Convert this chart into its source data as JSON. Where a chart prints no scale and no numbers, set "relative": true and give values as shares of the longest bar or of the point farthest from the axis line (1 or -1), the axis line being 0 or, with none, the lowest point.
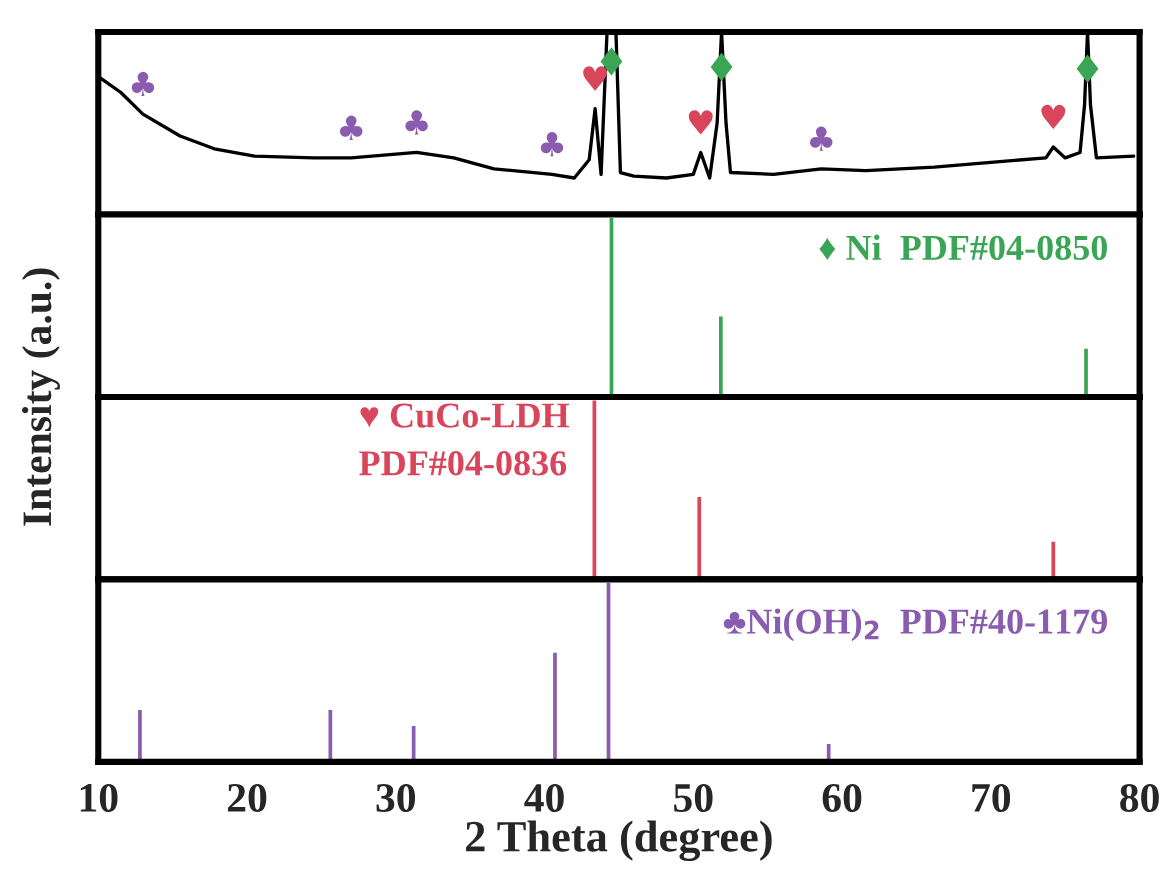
{
  "chart_data": [
    {
      "type": "line",
      "relative": true,
      "ylabel": "Intensity (a.u.)",
      "xlim": [
        10,
        80
      ],
      "tick_labels": false,
      "color": "#000000",
      "x": [
        10.1,
        11.5,
        13.0,
        15.5,
        17.8,
        20.5,
        24.5,
        27.0,
        31.4,
        33.9,
        36.6,
        40.5,
        42.0,
        43.0,
        43.4,
        43.8,
        44.2,
        44.5,
        44.8,
        45.1,
        46.0,
        48.2,
        50.0,
        50.5,
        51.1,
        51.6,
        51.9,
        52.2,
        52.5,
        55.4,
        58.6,
        61.6,
        66.2,
        70.6,
        73.7,
        74.2,
        75.0,
        76.0,
        76.3,
        76.5,
        76.7,
        77.1,
        79.6
      ],
      "values": [
        0.75,
        0.67,
        0.55,
        0.43,
        0.36,
        0.32,
        0.31,
        0.31,
        0.34,
        0.31,
        0.25,
        0.22,
        0.2,
        0.3,
        0.58,
        0.22,
        1,
        1,
        1,
        0.23,
        0.21,
        0.2,
        0.22,
        0.34,
        0.2,
        0.5,
        1,
        0.5,
        0.23,
        0.22,
        0.25,
        0.24,
        0.26,
        0.29,
        0.31,
        0.37,
        0.31,
        0.34,
        0.6,
        1,
        0.6,
        0.31,
        0.32
      ],
      "annotations": [
        {
          "text": "♣",
          "x": 13.0,
          "y": 0.55
        },
        {
          "text": "♣",
          "x": 27.0,
          "y": 0.31
        },
        {
          "text": "♣",
          "x": 31.4,
          "y": 0.34
        },
        {
          "text": "♣",
          "x": 40.5,
          "y": 0.22
        },
        {
          "text": "♣",
          "x": 58.6,
          "y": 0.25
        },
        {
          "text": "♥",
          "x": 43.4,
          "y": 0.58
        },
        {
          "text": "♥",
          "x": 50.5,
          "y": 0.34
        },
        {
          "text": "♥",
          "x": 74.2,
          "y": 0.37
        },
        {
          "text": "♦",
          "x": 44.5,
          "y": 0.82
        },
        {
          "text": "♦",
          "x": 51.9,
          "y": 0.79
        },
        {
          "text": "♦",
          "x": 76.5,
          "y": 0.78
        }
      ]
    },
    {
      "type": "bar",
      "relative": true,
      "xlim": [
        10,
        80
      ],
      "tick_labels": false,
      "color": "#3aa655",
      "x": [
        44.5,
        51.85,
        76.4
      ],
      "values": [
        1,
        0.45,
        0.27
      ],
      "annotations": [
        "♦ Ni  PDF#04-0850"
      ]
    },
    {
      "type": "bar",
      "relative": true,
      "xlim": [
        10,
        80
      ],
      "tick_labels": false,
      "color": "#d9455a",
      "x": [
        43.35,
        50.4,
        74.2
      ],
      "values": [
        1,
        0.46,
        0.21
      ],
      "annotations": [
        "♥ CuCo-LDH\nPDF#04-0836"
      ]
    },
    {
      "type": "bar",
      "relative": true,
      "xlim": [
        10,
        80
      ],
      "xticks": [
        10,
        20,
        30,
        40,
        50,
        60,
        70,
        80
      ],
      "tick_labels": "x",
      "xlabel": "2 Theta (degree)",
      "color": "#8a5cb0",
      "x": [
        12.8,
        25.6,
        31.2,
        40.7,
        44.3,
        59.1
      ],
      "values": [
        0.29,
        0.29,
        0.2,
        0.61,
        1,
        0.1
      ],
      "annotations": [
        "♣Ni(OH)$_{2}$  PDF#40-1179"
      ]
    }
  ]
}
